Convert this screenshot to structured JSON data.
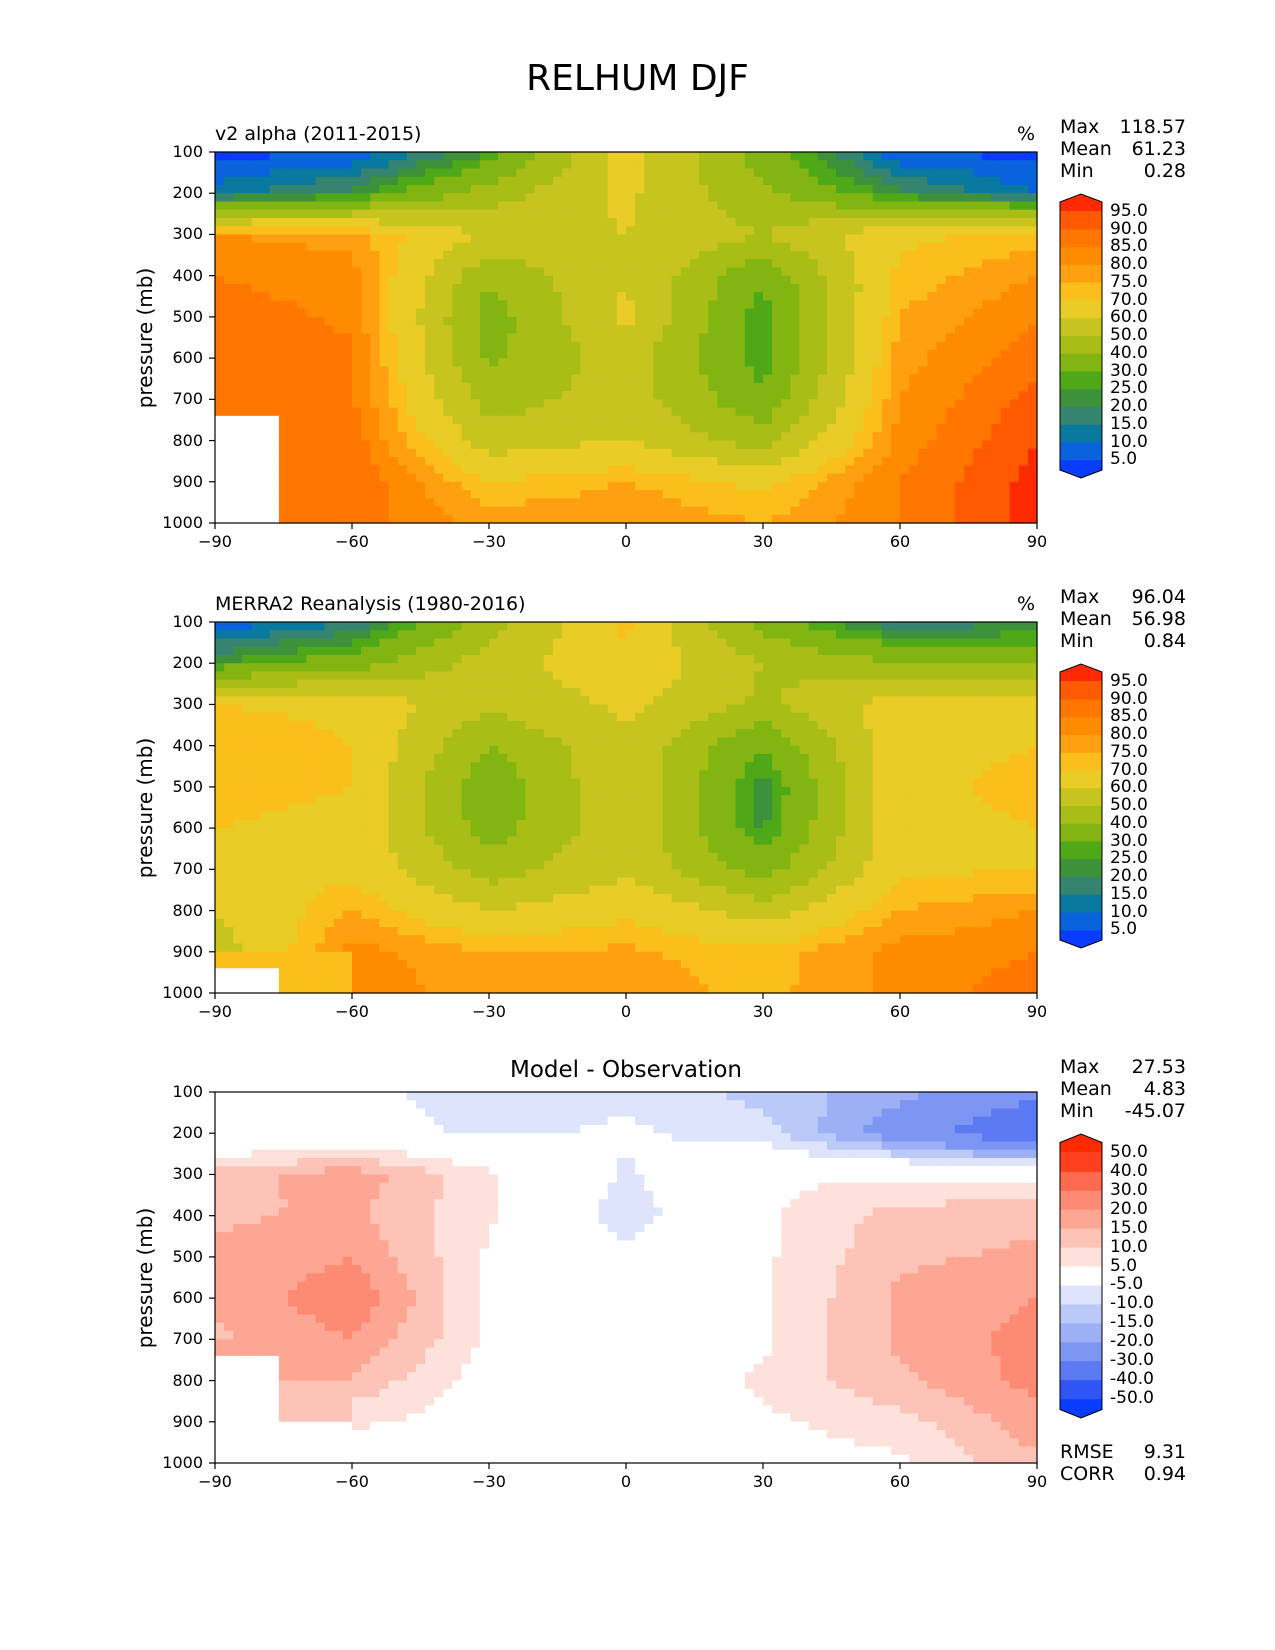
{
  "figure": {
    "title": "RELHUM DJF"
  },
  "chart_data": [
    {
      "type": "heatmap",
      "panel": "model",
      "title": "v2 alpha (2011-2015)",
      "units": "%",
      "ylabel": "pressure (mb)",
      "xlim": [
        -90,
        90
      ],
      "ylim": [
        1000,
        100
      ],
      "x_ticks": [
        "−90",
        "−60",
        "−30",
        "0",
        "30",
        "60",
        "90"
      ],
      "y_ticks": [
        "100",
        "200",
        "300",
        "400",
        "500",
        "600",
        "700",
        "800",
        "900",
        "1000"
      ],
      "stats": {
        "max_label": "Max",
        "max": "118.57",
        "mean_label": "Mean",
        "mean": "61.23",
        "min_label": "Min",
        "min": "0.28"
      },
      "colorbar_levels": [
        "95.0",
        "90.0",
        "85.0",
        "80.0",
        "75.0",
        "70.0",
        "60.0",
        "50.0",
        "40.0",
        "30.0",
        "25.0",
        "20.0",
        "15.0",
        "10.0",
        "5.0"
      ],
      "colorbar_colors": [
        "#ff2a00",
        "#ff5a00",
        "#ff7700",
        "#ff8c00",
        "#ffa010",
        "#fbbf1c",
        "#e9cc26",
        "#c8c41f",
        "#a8be16",
        "#82b512",
        "#4fa817",
        "#3c913a",
        "#348470",
        "#0a79a0",
        "#0a62dc",
        "#0a3cff"
      ],
      "colorbar_range": [
        5,
        95
      ],
      "x": [
        -90,
        -60,
        -30,
        0,
        30,
        60,
        90
      ],
      "y": [
        100,
        200,
        300,
        400,
        500,
        600,
        700,
        800,
        900,
        1000
      ],
      "values": [
        [
          3,
          5,
          25,
          65,
          35,
          5,
          3
        ],
        [
          12,
          22,
          45,
          62,
          42,
          22,
          10
        ],
        [
          80,
          78,
          58,
          60,
          50,
          68,
          72
        ],
        [
          85,
          82,
          42,
          60,
          32,
          72,
          80
        ],
        [
          88,
          84,
          35,
          62,
          25,
          75,
          85
        ],
        [
          88,
          86,
          38,
          55,
          26,
          78,
          88
        ],
        [
          90,
          86,
          45,
          55,
          32,
          80,
          92
        ],
        [
          null,
          88,
          55,
          60,
          45,
          82,
          95
        ],
        [
          null,
          90,
          70,
          75,
          68,
          85,
          97
        ],
        [
          null,
          88,
          78,
          80,
          75,
          85,
          97
        ]
      ]
    },
    {
      "type": "heatmap",
      "panel": "observation",
      "title": "MERRA2 Reanalysis (1980-2016)",
      "units": "%",
      "ylabel": "pressure (mb)",
      "xlim": [
        -90,
        90
      ],
      "ylim": [
        1000,
        100
      ],
      "x_ticks": [
        "−90",
        "−60",
        "−30",
        "0",
        "30",
        "60",
        "90"
      ],
      "y_ticks": [
        "100",
        "200",
        "300",
        "400",
        "500",
        "600",
        "700",
        "800",
        "900",
        "1000"
      ],
      "stats": {
        "max_label": "Max",
        "max": "96.04",
        "mean_label": "Mean",
        "mean": "56.98",
        "min_label": "Min",
        "min": "0.84"
      },
      "colorbar_levels": [
        "95.0",
        "90.0",
        "85.0",
        "80.0",
        "75.0",
        "70.0",
        "60.0",
        "50.0",
        "40.0",
        "30.0",
        "25.0",
        "20.0",
        "15.0",
        "10.0",
        "5.0"
      ],
      "colorbar_colors": [
        "#ff2a00",
        "#ff5a00",
        "#ff7700",
        "#ff8c00",
        "#ffa010",
        "#fbbf1c",
        "#e9cc26",
        "#c8c41f",
        "#a8be16",
        "#82b512",
        "#4fa817",
        "#3c913a",
        "#348470",
        "#0a79a0",
        "#0a62dc",
        "#0a3cff"
      ],
      "colorbar_range": [
        5,
        95
      ],
      "x": [
        -90,
        -60,
        -30,
        0,
        30,
        60,
        90
      ],
      "y": [
        100,
        200,
        300,
        400,
        500,
        600,
        700,
        800,
        900,
        1000
      ],
      "values": [
        [
          5,
          15,
          45,
          72,
          35,
          15,
          20
        ],
        [
          25,
          35,
          55,
          68,
          50,
          40,
          40
        ],
        [
          70,
          68,
          52,
          62,
          48,
          65,
          68
        ],
        [
          75,
          70,
          40,
          58,
          30,
          68,
          70
        ],
        [
          72,
          70,
          32,
          60,
          22,
          68,
          72
        ],
        [
          70,
          68,
          35,
          58,
          24,
          68,
          70
        ],
        [
          70,
          68,
          45,
          58,
          35,
          68,
          70
        ],
        [
          60,
          75,
          60,
          68,
          55,
          75,
          80
        ],
        [
          55,
          82,
          75,
          76,
          72,
          82,
          85
        ],
        [
          null,
          85,
          76,
          78,
          73,
          82,
          88
        ]
      ]
    },
    {
      "type": "heatmap",
      "panel": "difference",
      "title": "Model - Observation",
      "ylabel": "pressure (mb)",
      "xlim": [
        -90,
        90
      ],
      "ylim": [
        1000,
        100
      ],
      "x_ticks": [
        "−90",
        "−60",
        "−30",
        "0",
        "30",
        "60",
        "90"
      ],
      "y_ticks": [
        "100",
        "200",
        "300",
        "400",
        "500",
        "600",
        "700",
        "800",
        "900",
        "1000"
      ],
      "stats": {
        "max_label": "Max",
        "max": "27.53",
        "mean_label": "Mean",
        "mean": "4.83",
        "min_label": "Min",
        "min": "-45.07"
      },
      "metrics": {
        "rmse_label": "RMSE",
        "rmse": "9.31",
        "corr_label": "CORR",
        "corr": "0.94"
      },
      "colorbar_levels": [
        "50.0",
        "40.0",
        "30.0",
        "20.0",
        "15.0",
        "10.0",
        "5.0",
        "-5.0",
        "-10.0",
        "-15.0",
        "-20.0",
        "-30.0",
        "-40.0",
        "-50.0"
      ],
      "colorbar_colors": [
        "#ff2a00",
        "#ff3f1e",
        "#fd6a50",
        "#fd8a73",
        "#fda693",
        "#fdc3b6",
        "#fee1da",
        "#ffffff",
        "#dde4fb",
        "#bbc9f8",
        "#9eb0f5",
        "#7d95f3",
        "#5b79f1",
        "#2f56f4",
        "#0a3cff"
      ],
      "colorbar_range": [
        -50,
        50
      ],
      "x": [
        -90,
        -60,
        -30,
        0,
        30,
        60,
        90
      ],
      "y": [
        100,
        200,
        300,
        400,
        500,
        600,
        700,
        800,
        900,
        1000
      ],
      "values": [
        [
          0,
          -2,
          -10,
          -6,
          -12,
          -18,
          -28
        ],
        [
          -4,
          -2,
          -6,
          -4,
          -8,
          -25,
          -40
        ],
        [
          12,
          18,
          6,
          -6,
          4,
          4,
          3
        ],
        [
          14,
          16,
          6,
          -8,
          4,
          12,
          14
        ],
        [
          16,
          20,
          4,
          -4,
          4,
          14,
          16
        ],
        [
          16,
          24,
          4,
          -2,
          4,
          16,
          20
        ],
        [
          14,
          20,
          4,
          -2,
          4,
          16,
          22
        ],
        [
          null,
          14,
          2,
          -1,
          6,
          14,
          22
        ],
        [
          null,
          6,
          2,
          0,
          4,
          8,
          18
        ],
        [
          null,
          2,
          0,
          0,
          2,
          4,
          14
        ]
      ]
    }
  ]
}
